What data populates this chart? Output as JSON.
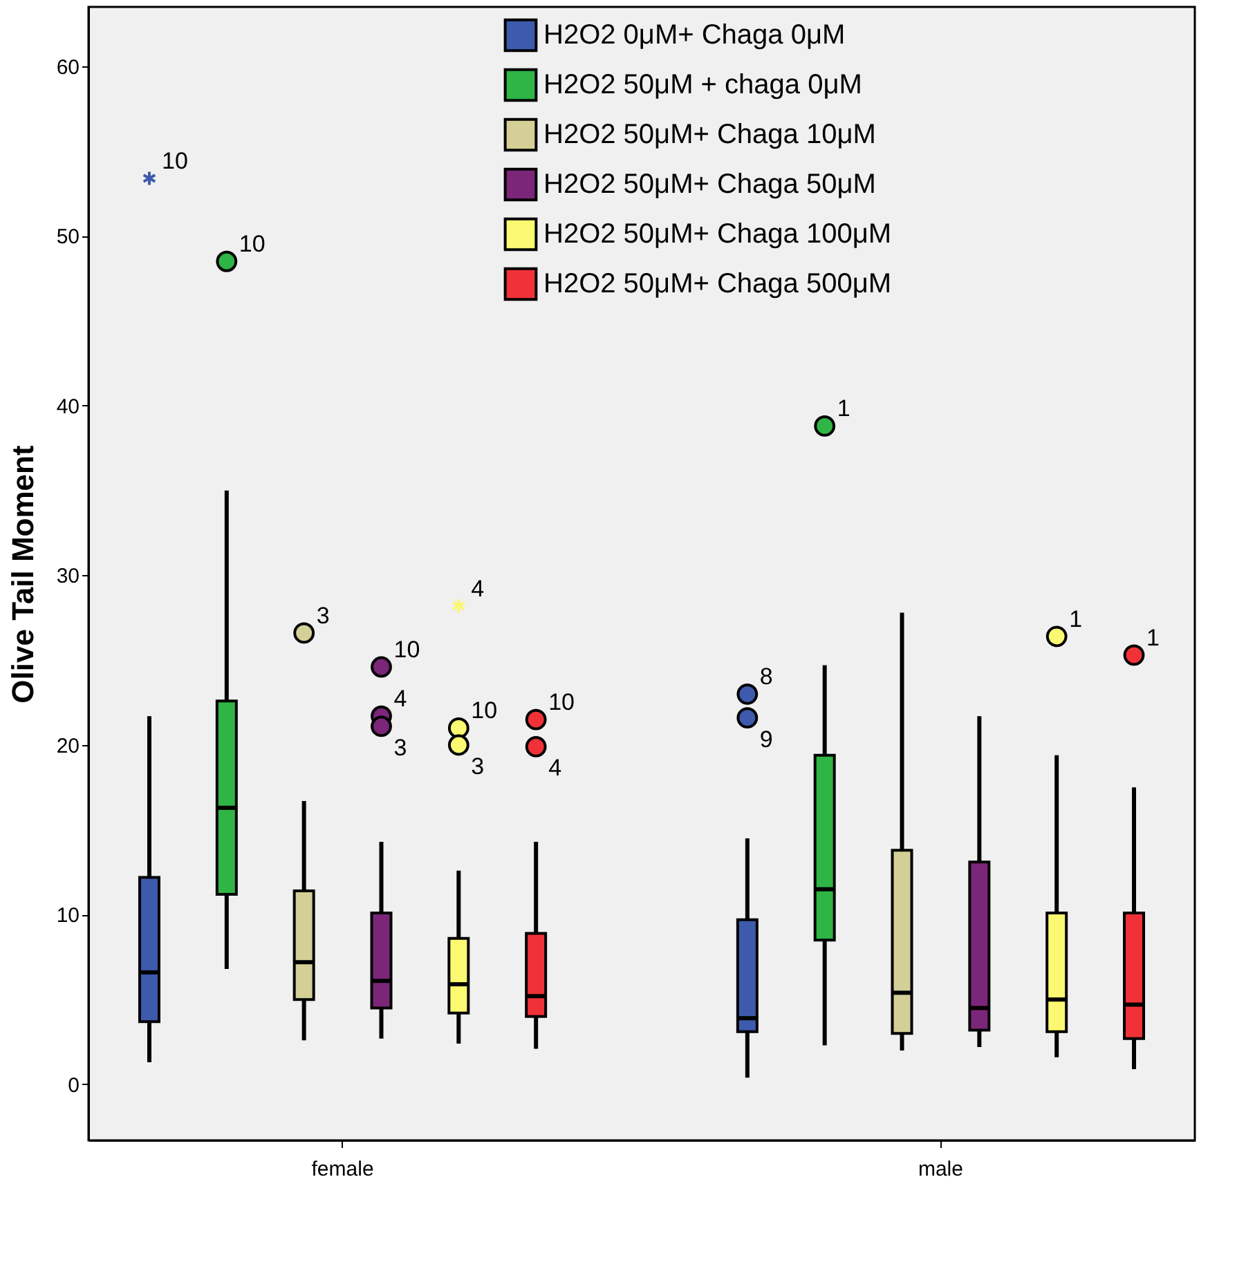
{
  "chart_data": {
    "type": "box",
    "ylabel": "Olive Tail Moment",
    "categories": [
      "female",
      "male"
    ],
    "ylim": [
      -3.3,
      63.5
    ],
    "yticks": [
      0,
      10,
      20,
      30,
      40,
      50,
      60
    ],
    "grid": false,
    "legend": "top",
    "series": [
      {
        "name": "H2O2 0μM+ Chaga 0μM",
        "color": "#3e5aac",
        "boxes": [
          {
            "low": 1.3,
            "q1": 3.7,
            "median": 6.6,
            "q3": 12.2,
            "high": 21.7,
            "outliers": [
              53.4
            ]
          },
          {
            "low": 0.4,
            "q1": 3.1,
            "median": 3.9,
            "q3": 9.7,
            "high": 14.5,
            "outliers": [
              23.0,
              21.6
            ]
          }
        ]
      },
      {
        "name": "H2O2 50μM + chaga 0μM",
        "color": "#2fb545",
        "boxes": [
          {
            "low": 6.8,
            "q1": 11.2,
            "median": 16.3,
            "q3": 22.6,
            "high": 35.0,
            "outliers": [
              48.5
            ]
          },
          {
            "low": 2.3,
            "q1": 8.5,
            "median": 11.5,
            "q3": 19.4,
            "high": 24.7,
            "outliers": [
              38.8
            ]
          }
        ]
      },
      {
        "name": "H2O2 50μM+ Chaga 10μM",
        "color": "#d4cf96",
        "boxes": [
          {
            "low": 2.6,
            "q1": 5.0,
            "median": 7.2,
            "q3": 11.4,
            "high": 16.7,
            "outliers": [
              26.6
            ]
          },
          {
            "low": 2.0,
            "q1": 3.0,
            "median": 5.4,
            "q3": 13.8,
            "high": 27.8
          }
        ]
      },
      {
        "name": "H2O2 50μM+ Chaga 50μM",
        "color": "#7b2678",
        "boxes": [
          {
            "low": 2.7,
            "q1": 4.5,
            "median": 6.1,
            "q3": 10.1,
            "high": 14.3,
            "outliers": [
              24.6,
              21.7,
              21.1
            ]
          },
          {
            "low": 2.2,
            "q1": 3.2,
            "median": 4.5,
            "q3": 13.1,
            "high": 21.7
          }
        ]
      },
      {
        "name": "H2O2 50μM+ Chaga 100μM",
        "color": "#fbf871",
        "boxes": [
          {
            "low": 2.4,
            "q1": 4.2,
            "median": 5.9,
            "q3": 8.6,
            "high": 12.6,
            "outliers": [
              28.2,
              21.0,
              20.0
            ]
          },
          {
            "low": 1.6,
            "q1": 3.1,
            "median": 5.0,
            "q3": 10.1,
            "high": 19.4,
            "outliers": [
              26.4
            ]
          }
        ]
      },
      {
        "name": "H2O2 50μM+ Chaga 500μM",
        "color": "#f03238",
        "boxes": [
          {
            "low": 2.1,
            "q1": 4.0,
            "median": 5.2,
            "q3": 8.9,
            "high": 14.3,
            "outliers": [
              21.5,
              19.9
            ]
          },
          {
            "low": 0.9,
            "q1": 2.7,
            "median": 4.7,
            "q3": 10.1,
            "high": 17.5,
            "outliers": [
              25.3
            ]
          }
        ]
      }
    ],
    "annotations": [
      "10",
      "8",
      "9",
      "10",
      "1",
      "3",
      "10",
      "4",
      "3",
      "4",
      "10",
      "3",
      "1",
      "10",
      "4",
      "1"
    ]
  }
}
